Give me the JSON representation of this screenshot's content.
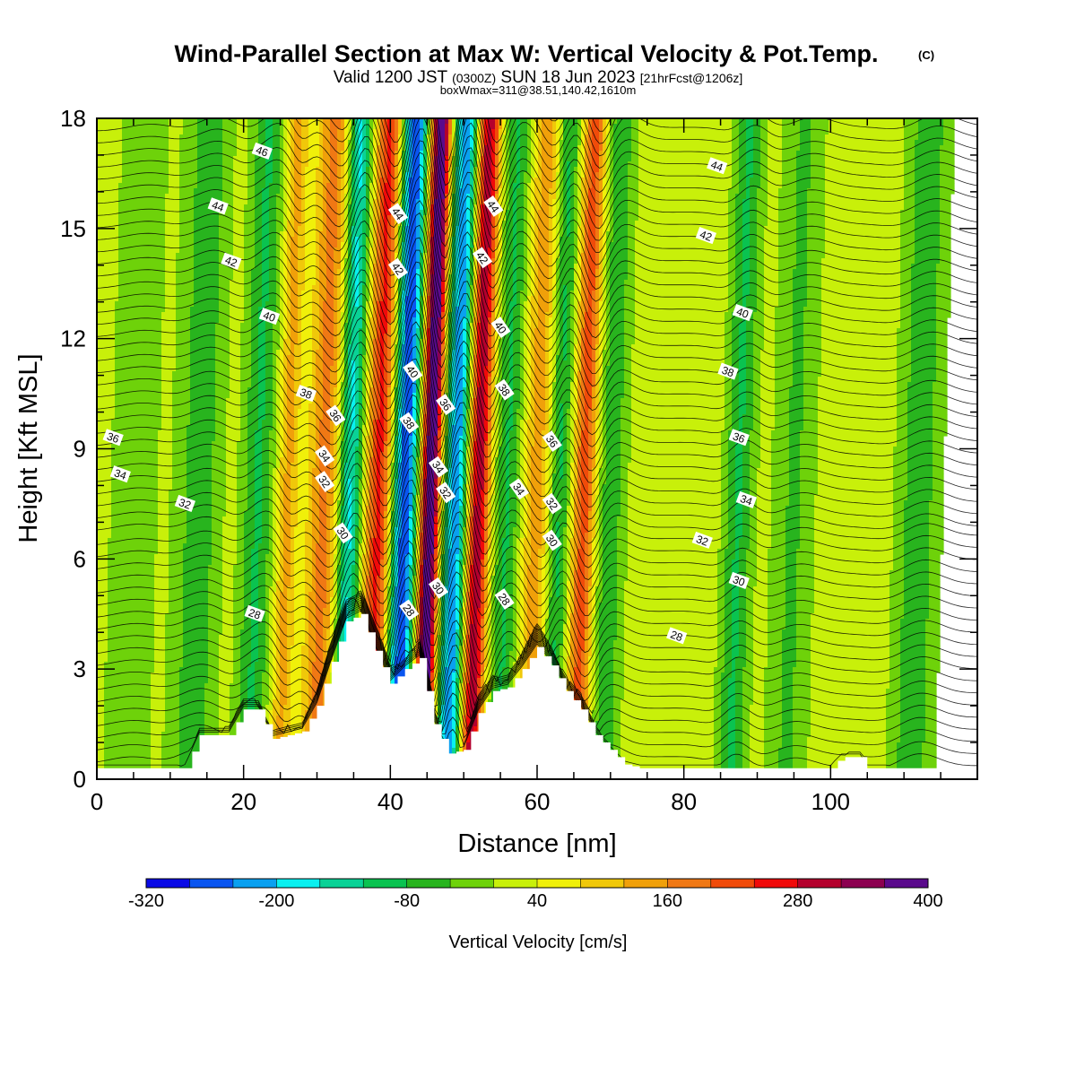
{
  "chart_data": {
    "type": "heatmap",
    "title": "Wind-Parallel Section at Max W: Vertical Velocity & Pot.Temp.",
    "title_mark": "(C)",
    "subtitle": {
      "valid_prefix": "Valid 1200 JST",
      "utc": "(0300Z)",
      "date": "SUN 18 Jun 2023",
      "forecast": "[21hrFcst@1206z]"
    },
    "info": "boxWmax=311@38.51,140.42,1610m",
    "xlabel": "Distance [nm]",
    "ylabel": "Height [Kft MSL]",
    "xlim": [
      0,
      120
    ],
    "ylim": [
      0,
      18
    ],
    "xticks": [
      "0",
      "20",
      "40",
      "60",
      "80",
      "100"
    ],
    "yticks": [
      "0",
      "3",
      "6",
      "9",
      "12",
      "15",
      "18"
    ],
    "colorbar": {
      "label": "Vertical Velocity [cm/s]",
      "tick_labels": [
        "-320",
        "-200",
        "-80",
        "40",
        "160",
        "280",
        "400"
      ],
      "tick_values": [
        -320,
        -200,
        -80,
        40,
        160,
        280,
        400
      ],
      "levels": [
        -320,
        -280,
        -240,
        -200,
        -160,
        -120,
        -80,
        -40,
        0,
        40,
        80,
        120,
        160,
        200,
        240,
        280,
        320,
        360,
        400
      ],
      "colors": [
        "#0a0ae6",
        "#0a55f0",
        "#0aa0f0",
        "#0af0f0",
        "#0ad296",
        "#0ac350",
        "#28b41e",
        "#6ed20a",
        "#c8f00a",
        "#f0f00a",
        "#f0c80a",
        "#f0a00a",
        "#f07814",
        "#f04b0a",
        "#f00a0a",
        "#b4002d",
        "#8c0050",
        "#5a0a8c"
      ]
    },
    "vertical_velocity_bands": [
      {
        "x": 5,
        "w": 4,
        "amp": -45
      },
      {
        "x": 14,
        "w": 3,
        "amp": -90
      },
      {
        "x": 22,
        "w": 2.2,
        "amp": -110
      },
      {
        "x": 26,
        "w": 1.4,
        "amp": 110
      },
      {
        "x": 31,
        "w": 2.2,
        "amp": 150
      },
      {
        "x": 34.5,
        "w": 1.6,
        "amp": -200
      },
      {
        "x": 38.5,
        "w": 1.8,
        "amp": 230
      },
      {
        "x": 42,
        "w": 1.8,
        "amp": -300
      },
      {
        "x": 45.5,
        "w": 1.4,
        "amp": 400
      },
      {
        "x": 49,
        "w": 1.8,
        "amp": -260
      },
      {
        "x": 52,
        "w": 1.6,
        "amp": 300
      },
      {
        "x": 56,
        "w": 2,
        "amp": -110
      },
      {
        "x": 60,
        "w": 2,
        "amp": 120
      },
      {
        "x": 63,
        "w": 1.6,
        "amp": -120
      },
      {
        "x": 66.5,
        "w": 1.6,
        "amp": 200
      },
      {
        "x": 70,
        "w": 2.2,
        "amp": -90
      },
      {
        "x": 87.5,
        "w": 2,
        "amp": -110
      },
      {
        "x": 95,
        "w": 3,
        "amp": -70
      },
      {
        "x": 112,
        "w": 3,
        "amp": -90
      }
    ],
    "terrain": {
      "x": [
        0,
        12,
        14,
        18,
        20,
        22,
        24,
        28,
        30,
        32,
        34,
        36,
        38,
        40,
        42,
        44,
        46,
        48,
        50,
        52,
        54,
        56,
        58,
        60,
        62,
        64,
        66,
        68,
        70,
        72,
        74,
        100,
        101.5,
        104,
        105,
        120
      ],
      "height": [
        0.3,
        0.3,
        1.2,
        1.2,
        1.9,
        1.9,
        1.1,
        1.3,
        2.0,
        3.2,
        4.3,
        4.5,
        3.5,
        2.6,
        3.0,
        3.3,
        1.5,
        0.7,
        0.8,
        1.8,
        2.4,
        2.5,
        3.0,
        3.6,
        3.1,
        2.4,
        1.9,
        1.2,
        0.8,
        0.4,
        0.3,
        0.3,
        0.6,
        0.6,
        0.3,
        0.3
      ]
    },
    "theta_contour_labels": [
      {
        "x": 22.5,
        "y": 17.1,
        "text": "46"
      },
      {
        "x": 16.5,
        "y": 15.6,
        "text": "44"
      },
      {
        "x": 41,
        "y": 15.4,
        "text": "44"
      },
      {
        "x": 54,
        "y": 15.6,
        "text": "44"
      },
      {
        "x": 84.5,
        "y": 16.7,
        "text": "44"
      },
      {
        "x": 18.3,
        "y": 14.1,
        "text": "42"
      },
      {
        "x": 41,
        "y": 13.9,
        "text": "42"
      },
      {
        "x": 52.5,
        "y": 14.2,
        "text": "42"
      },
      {
        "x": 83,
        "y": 14.8,
        "text": "42"
      },
      {
        "x": 23.5,
        "y": 12.6,
        "text": "40"
      },
      {
        "x": 43,
        "y": 11.1,
        "text": "40"
      },
      {
        "x": 55,
        "y": 12.3,
        "text": "40"
      },
      {
        "x": 88,
        "y": 12.7,
        "text": "40"
      },
      {
        "x": 28.5,
        "y": 10.5,
        "text": "38"
      },
      {
        "x": 42.5,
        "y": 9.7,
        "text": "38"
      },
      {
        "x": 55.5,
        "y": 10.6,
        "text": "38"
      },
      {
        "x": 86,
        "y": 11.1,
        "text": "38"
      },
      {
        "x": 2.2,
        "y": 9.3,
        "text": "36"
      },
      {
        "x": 32.5,
        "y": 9.9,
        "text": "36"
      },
      {
        "x": 47.5,
        "y": 10.2,
        "text": "36"
      },
      {
        "x": 62,
        "y": 9.2,
        "text": "36"
      },
      {
        "x": 87.5,
        "y": 9.3,
        "text": "36"
      },
      {
        "x": 3.2,
        "y": 8.3,
        "text": "34"
      },
      {
        "x": 31,
        "y": 8.8,
        "text": "34"
      },
      {
        "x": 46.5,
        "y": 8.5,
        "text": "34"
      },
      {
        "x": 57.5,
        "y": 7.9,
        "text": "34"
      },
      {
        "x": 88.5,
        "y": 7.6,
        "text": "34"
      },
      {
        "x": 12,
        "y": 7.5,
        "text": "32"
      },
      {
        "x": 31,
        "y": 8.1,
        "text": "32"
      },
      {
        "x": 47.5,
        "y": 7.8,
        "text": "32"
      },
      {
        "x": 62,
        "y": 7.5,
        "text": "32"
      },
      {
        "x": 82.5,
        "y": 6.5,
        "text": "32"
      },
      {
        "x": 33.5,
        "y": 6.7,
        "text": "30"
      },
      {
        "x": 46.5,
        "y": 5.2,
        "text": "30"
      },
      {
        "x": 62,
        "y": 6.5,
        "text": "30"
      },
      {
        "x": 87.5,
        "y": 5.4,
        "text": "30"
      },
      {
        "x": 21.5,
        "y": 4.5,
        "text": "28"
      },
      {
        "x": 42.5,
        "y": 4.6,
        "text": "28"
      },
      {
        "x": 55.5,
        "y": 4.9,
        "text": "28"
      },
      {
        "x": 79,
        "y": 3.9,
        "text": "28"
      }
    ]
  }
}
